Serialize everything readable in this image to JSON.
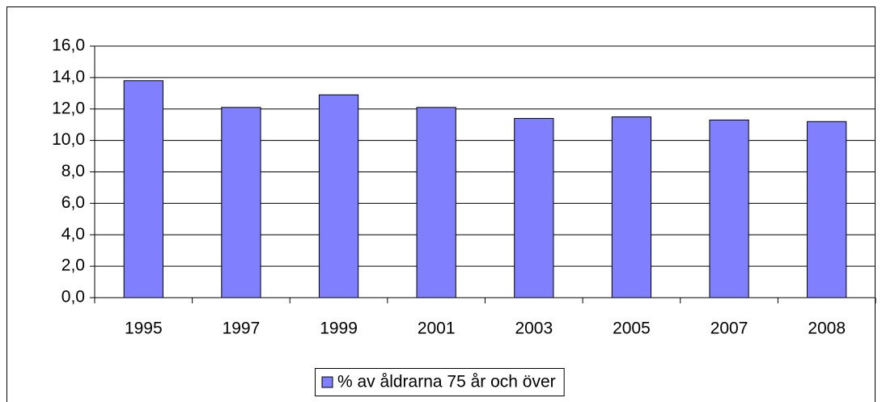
{
  "chart_data": {
    "type": "bar",
    "categories": [
      "1995",
      "1997",
      "1999",
      "2001",
      "2003",
      "2005",
      "2007",
      "2008"
    ],
    "series": [
      {
        "name": "% av åldrarna 75 år och över",
        "color": "#8080ff",
        "values": [
          13.8,
          12.1,
          12.9,
          12.1,
          11.4,
          11.5,
          11.3,
          11.2
        ]
      }
    ],
    "ylim": [
      0,
      16
    ],
    "yticks": [
      {
        "value": 0,
        "label": "0,0"
      },
      {
        "value": 2,
        "label": "2,0"
      },
      {
        "value": 4,
        "label": "4,0"
      },
      {
        "value": 6,
        "label": "6,0"
      },
      {
        "value": 8,
        "label": "8,0"
      },
      {
        "value": 10,
        "label": "10,0"
      },
      {
        "value": 12,
        "label": "12,0"
      },
      {
        "value": 14,
        "label": "14,0"
      },
      {
        "value": 16,
        "label": "16,0"
      }
    ],
    "grid": true,
    "legend": "bottom"
  }
}
